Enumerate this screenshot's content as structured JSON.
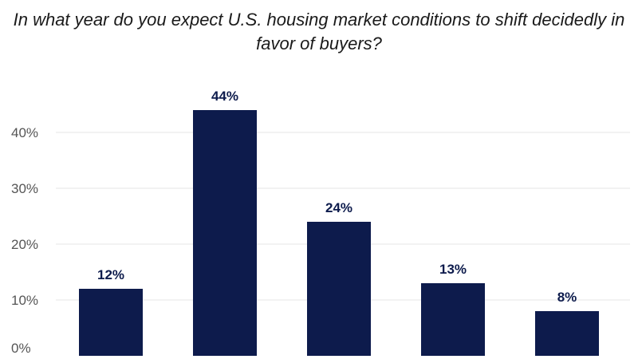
{
  "chart_data": {
    "type": "bar",
    "title": "In what year do you expect U.S. housing market conditions to shift decidedly in favor of buyers?",
    "categories": [
      "",
      "",
      "",
      "",
      ""
    ],
    "values": [
      12,
      44,
      24,
      13,
      8
    ],
    "value_labels": [
      "12%",
      "44%",
      "24%",
      "13%",
      "8%"
    ],
    "yticks": [
      0,
      10,
      20,
      30,
      40
    ],
    "ytick_labels": [
      "0%",
      "10%",
      "20%",
      "30%",
      "40%"
    ],
    "ylim": [
      0,
      44
    ],
    "xlabel": "",
    "ylabel": "",
    "grid": true,
    "bar_color": "#0d1b4c"
  }
}
